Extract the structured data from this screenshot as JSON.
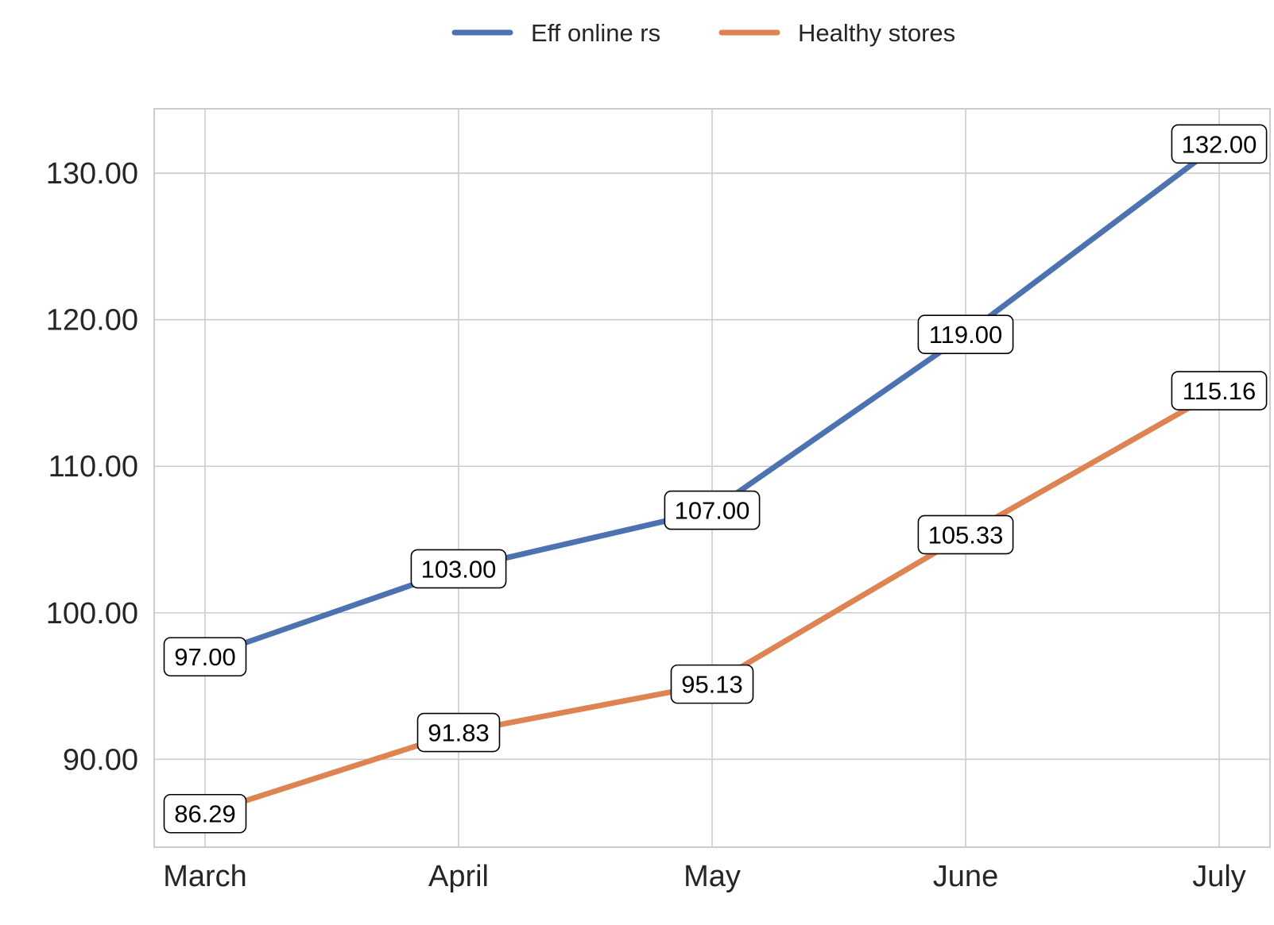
{
  "chart_data": {
    "type": "line",
    "title": "",
    "xlabel": "",
    "ylabel": "",
    "categories": [
      "March",
      "April",
      "May",
      "June",
      "July"
    ],
    "ylim": [
      84,
      134.4
    ],
    "yticks": [
      90,
      100,
      110,
      120,
      130
    ],
    "ytick_labels": [
      "90.00",
      "100.00",
      "110.00",
      "120.00",
      "130.00"
    ],
    "grid": true,
    "legend_position": "top-center",
    "series": [
      {
        "name": "Eff online rs",
        "color": "#4c72b0",
        "values": [
          97.0,
          103.0,
          107.0,
          119.0,
          132.0
        ],
        "labels": [
          "97.00",
          "103.00",
          "107.00",
          "119.00",
          "132.00"
        ]
      },
      {
        "name": "Healthy stores",
        "color": "#dd8452",
        "values": [
          86.29,
          91.83,
          95.13,
          105.33,
          115.16
        ],
        "labels": [
          "86.29",
          "91.83",
          "95.13",
          "105.33",
          "115.16"
        ]
      }
    ]
  }
}
